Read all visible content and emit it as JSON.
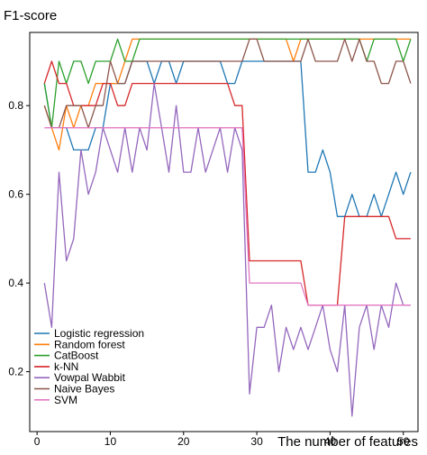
{
  "chart_data": {
    "type": "line",
    "ylabel": "F1-score",
    "xlabel": "The number of features",
    "xlim": [
      -1,
      52
    ],
    "ylim": [
      0.065,
      0.965
    ],
    "x_ticks": [
      0,
      10,
      20,
      30,
      40,
      50
    ],
    "y_ticks": [
      0.2,
      0.4,
      0.6,
      0.8
    ],
    "x_tick_labels": [
      "0",
      "10",
      "20",
      "30",
      "40",
      "50"
    ],
    "y_tick_labels": [
      "0.2",
      "0.4",
      "0.6",
      "0.8"
    ],
    "legend_position": "bottom-left",
    "grid": false,
    "x": [
      1,
      2,
      3,
      4,
      5,
      6,
      7,
      8,
      9,
      10,
      11,
      12,
      13,
      14,
      15,
      16,
      17,
      18,
      19,
      20,
      21,
      22,
      23,
      24,
      25,
      26,
      27,
      28,
      29,
      30,
      31,
      32,
      33,
      34,
      35,
      36,
      37,
      38,
      39,
      40,
      41,
      42,
      43,
      44,
      45,
      46,
      47,
      48,
      49,
      50,
      51
    ],
    "series": [
      {
        "name": "Logistic regression",
        "color": "#1f77b4",
        "values": [
          0.85,
          0.75,
          0.75,
          0.75,
          0.7,
          0.7,
          0.7,
          0.75,
          0.75,
          0.85,
          0.85,
          0.85,
          0.9,
          0.9,
          0.9,
          0.85,
          0.9,
          0.9,
          0.85,
          0.9,
          0.9,
          0.9,
          0.9,
          0.9,
          0.9,
          0.85,
          0.85,
          0.9,
          0.9,
          0.9,
          0.9,
          0.9,
          0.9,
          0.9,
          0.9,
          0.9,
          0.65,
          0.65,
          0.7,
          0.65,
          0.55,
          0.55,
          0.6,
          0.55,
          0.55,
          0.6,
          0.55,
          0.6,
          0.65,
          0.6,
          0.65
        ]
      },
      {
        "name": "Random forest",
        "color": "#ff7f0e",
        "values": [
          0.8,
          0.75,
          0.7,
          0.8,
          0.75,
          0.8,
          0.8,
          0.85,
          0.85,
          0.85,
          0.85,
          0.9,
          0.95,
          0.95,
          0.95,
          0.95,
          0.95,
          0.95,
          0.95,
          0.95,
          0.95,
          0.95,
          0.95,
          0.95,
          0.95,
          0.95,
          0.95,
          0.95,
          0.95,
          0.95,
          0.95,
          0.95,
          0.95,
          0.95,
          0.9,
          0.95,
          0.95,
          0.95,
          0.95,
          0.95,
          0.95,
          0.95,
          0.95,
          0.95,
          0.95,
          0.95,
          0.95,
          0.95,
          0.95,
          0.95,
          0.95
        ]
      },
      {
        "name": "CatBoost",
        "color": "#2ca02c",
        "values": [
          0.85,
          0.75,
          0.9,
          0.85,
          0.9,
          0.9,
          0.85,
          0.9,
          0.9,
          0.9,
          0.95,
          0.9,
          0.9,
          0.95,
          0.95,
          0.95,
          0.95,
          0.95,
          0.95,
          0.95,
          0.95,
          0.95,
          0.95,
          0.95,
          0.95,
          0.95,
          0.95,
          0.95,
          0.95,
          0.95,
          0.95,
          0.95,
          0.95,
          0.95,
          0.95,
          0.95,
          0.95,
          0.95,
          0.95,
          0.95,
          0.95,
          0.95,
          0.95,
          0.95,
          0.9,
          0.95,
          0.95,
          0.95,
          0.95,
          0.9,
          0.95
        ]
      },
      {
        "name": "k-NN",
        "color": "#d62728",
        "values": [
          0.85,
          0.9,
          0.85,
          0.85,
          0.8,
          0.8,
          0.8,
          0.8,
          0.85,
          0.85,
          0.8,
          0.8,
          0.85,
          0.85,
          0.85,
          0.85,
          0.85,
          0.85,
          0.85,
          0.85,
          0.85,
          0.85,
          0.85,
          0.85,
          0.85,
          0.85,
          0.8,
          0.8,
          0.45,
          0.45,
          0.45,
          0.45,
          0.45,
          0.45,
          0.45,
          0.45,
          0.35,
          0.35,
          0.35,
          0.35,
          0.35,
          0.55,
          0.55,
          0.55,
          0.55,
          0.55,
          0.55,
          0.55,
          0.5,
          0.5,
          0.5
        ]
      },
      {
        "name": "Vowpal Wabbit",
        "color": "#9467bd",
        "values": [
          0.4,
          0.3,
          0.65,
          0.45,
          0.5,
          0.7,
          0.6,
          0.65,
          0.75,
          0.7,
          0.65,
          0.75,
          0.65,
          0.75,
          0.7,
          0.85,
          0.75,
          0.65,
          0.8,
          0.65,
          0.65,
          0.75,
          0.65,
          0.7,
          0.75,
          0.65,
          0.75,
          0.7,
          0.15,
          0.3,
          0.3,
          0.35,
          0.2,
          0.3,
          0.25,
          0.3,
          0.25,
          0.3,
          0.35,
          0.25,
          0.2,
          0.35,
          0.1,
          0.3,
          0.35,
          0.25,
          0.35,
          0.3,
          0.4,
          0.35,
          0.35
        ]
      },
      {
        "name": "Naive Bayes",
        "color": "#8c564b",
        "values": [
          0.8,
          0.75,
          0.75,
          0.8,
          0.8,
          0.8,
          0.75,
          0.8,
          0.8,
          0.9,
          0.85,
          0.85,
          0.9,
          0.9,
          0.9,
          0.9,
          0.9,
          0.9,
          0.9,
          0.9,
          0.9,
          0.9,
          0.9,
          0.9,
          0.9,
          0.9,
          0.9,
          0.9,
          0.95,
          0.95,
          0.9,
          0.9,
          0.9,
          0.9,
          0.9,
          0.9,
          0.95,
          0.9,
          0.9,
          0.9,
          0.9,
          0.95,
          0.9,
          0.95,
          0.9,
          0.9,
          0.85,
          0.85,
          0.9,
          0.9,
          0.85
        ]
      },
      {
        "name": "SVM",
        "color": "#e377c2",
        "values": [
          0.75,
          0.75,
          0.75,
          0.75,
          0.75,
          0.75,
          0.75,
          0.75,
          0.75,
          0.75,
          0.75,
          0.75,
          0.75,
          0.75,
          0.75,
          0.75,
          0.75,
          0.75,
          0.75,
          0.75,
          0.75,
          0.75,
          0.75,
          0.75,
          0.75,
          0.75,
          0.75,
          0.75,
          0.4,
          0.4,
          0.4,
          0.4,
          0.4,
          0.4,
          0.4,
          0.4,
          0.35,
          0.35,
          0.35,
          0.35,
          0.35,
          0.35,
          0.35,
          0.35,
          0.35,
          0.35,
          0.35,
          0.35,
          0.35,
          0.35,
          0.35
        ]
      }
    ]
  }
}
